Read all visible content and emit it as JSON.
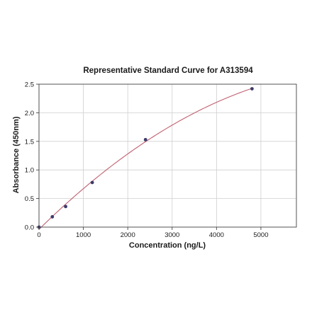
{
  "chart_data": {
    "type": "scatter",
    "title": "Representative Standard Curve for A313594",
    "xlabel": "Concentration (ng/L)",
    "ylabel": "Absorbance (450nm)",
    "xlim": [
      0,
      5800
    ],
    "ylim": [
      0,
      2.5
    ],
    "xticks": [
      0,
      1000,
      2000,
      3000,
      4000,
      5000
    ],
    "xtick_labels": [
      "0",
      "1000",
      "2000",
      "3000",
      "4000",
      "5000"
    ],
    "yticks": [
      0,
      0.5,
      1.0,
      1.5,
      2.0,
      2.5
    ],
    "ytick_labels": [
      "0.0",
      "0.5",
      "1.0",
      "1.5",
      "2.0",
      "2.5"
    ],
    "grid": true,
    "series": [
      {
        "points": [
          {
            "x": 0,
            "y": 0.0
          },
          {
            "x": 300,
            "y": 0.18
          },
          {
            "x": 600,
            "y": 0.36
          },
          {
            "x": 1200,
            "y": 0.78
          },
          {
            "x": 2400,
            "y": 1.53
          },
          {
            "x": 4800,
            "y": 2.42
          }
        ],
        "marker_color": "#3b3b6b",
        "fit_curve": true,
        "line_color": "#c06070"
      }
    ]
  }
}
